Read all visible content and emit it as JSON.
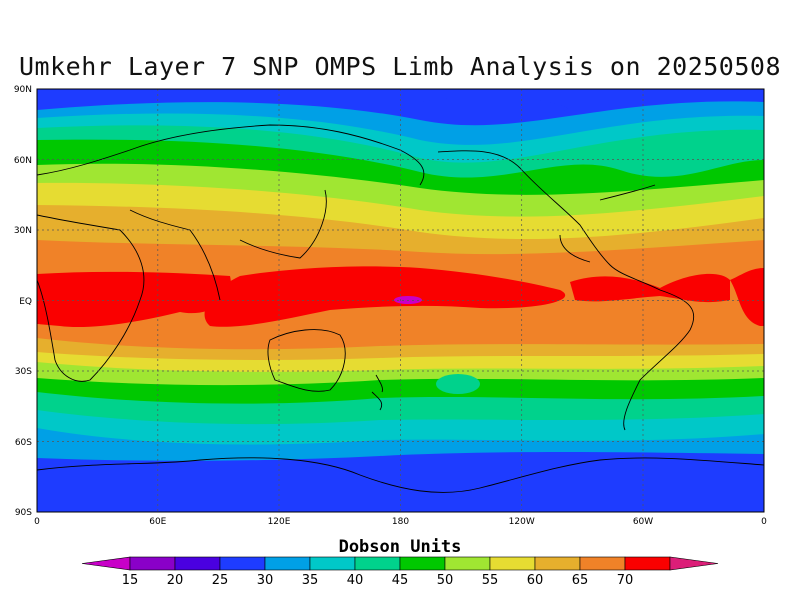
{
  "title": "Umkehr Layer 7 SNP OMPS Limb Analysis on 20250508",
  "lat_ticks": [
    "90N",
    "60N",
    "30N",
    "EQ",
    "30S",
    "60S",
    "90S"
  ],
  "lon_ticks": [
    "0",
    "60E",
    "120E",
    "180",
    "120W",
    "60W",
    "0"
  ],
  "colorbar": {
    "title": "Dobson Units",
    "levels": [
      "15",
      "20",
      "25",
      "30",
      "35",
      "40",
      "45",
      "50",
      "55",
      "60",
      "65",
      "70"
    ],
    "colors": [
      "#8a00c8",
      "#4a00e0",
      "#1e3cff",
      "#00a0e6",
      "#00c8c8",
      "#00d28c",
      "#00c800",
      "#a0e632",
      "#e6dc32",
      "#e6af2d",
      "#f08228",
      "#fa0000"
    ],
    "low_color": "#c800c8",
    "high_color": "#dc1e78"
  },
  "chart_data": {
    "type": "heatmap",
    "title": "Umkehr Layer 7 SNP OMPS Limb Analysis on 20250508",
    "units": "Dobson Units",
    "x_range": [
      0,
      360
    ],
    "y_range": [
      -90,
      90
    ],
    "note_contour_bands": [
      {
        "lat_from": 90,
        "lat_to": 80,
        "value": 25
      },
      {
        "lat_from": 80,
        "lat_to": 72,
        "value": 30
      },
      {
        "lat_from": 72,
        "lat_to": 66,
        "value": 35
      },
      {
        "lat_from": 66,
        "lat_to": 60,
        "value": 40
      },
      {
        "lat_from": 60,
        "lat_to": 48,
        "value": 45
      },
      {
        "lat_from": 48,
        "lat_to": 40,
        "value": 50
      },
      {
        "lat_from": 40,
        "lat_to": 30,
        "value": 55
      },
      {
        "lat_from": 30,
        "lat_to": 20,
        "value": 60
      },
      {
        "lat_from": 20,
        "lat_to": 10,
        "value": 65
      },
      {
        "lat_from": 10,
        "lat_to": -10,
        "value": 70
      },
      {
        "lat_from": -10,
        "lat_to": -18,
        "value": 65
      },
      {
        "lat_from": -18,
        "lat_to": -25,
        "value": 60
      },
      {
        "lat_from": -25,
        "lat_to": -30,
        "value": 55
      },
      {
        "lat_from": -30,
        "lat_to": -35,
        "value": 50
      },
      {
        "lat_from": -35,
        "lat_to": -42,
        "value": 45
      },
      {
        "lat_from": -42,
        "lat_to": -50,
        "value": 40
      },
      {
        "lat_from": -50,
        "lat_to": -57,
        "value": 35
      },
      {
        "lat_from": -57,
        "lat_to": -64,
        "value": 30
      },
      {
        "lat_from": -64,
        "lat_to": -90,
        "value": 25
      }
    ]
  }
}
